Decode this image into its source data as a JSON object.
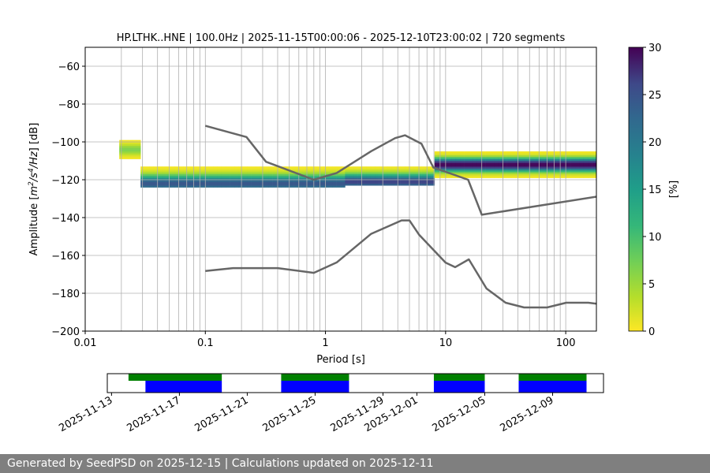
{
  "footer": {
    "text": "Generated by SeedPSD on 2025-12-15 | Calculations updated on 2025-12-11"
  },
  "chart_data": [
    {
      "type": "heatmap",
      "title": "HP.LTHK..HNE | 100.0Hz | 2025-11-15T00:00:06 - 2025-12-10T23:00:02 | 720 segments",
      "xlabel": "Period [s]",
      "ylabel_parts": [
        "Amplitude [",
        "m",
        "2",
        "/s",
        "4",
        "/Hz",
        "] [dB]"
      ],
      "x_scale": "log",
      "xlim": [
        0.01,
        180
      ],
      "ylim": [
        -200,
        -50
      ],
      "x_ticks": [
        {
          "value": 0.01,
          "label": "0.01"
        },
        {
          "value": 0.1,
          "label": "0.1"
        },
        {
          "value": 1,
          "label": "1"
        },
        {
          "value": 10,
          "label": "10"
        },
        {
          "value": 100,
          "label": "100"
        }
      ],
      "y_ticks": [
        {
          "value": -60,
          "label": "−60"
        },
        {
          "value": -80,
          "label": "−80"
        },
        {
          "value": -100,
          "label": "−100"
        },
        {
          "value": -120,
          "label": "−120"
        },
        {
          "value": -140,
          "label": "−140"
        },
        {
          "value": -160,
          "label": "−160"
        },
        {
          "value": -180,
          "label": "−180"
        },
        {
          "value": -200,
          "label": "−200"
        }
      ],
      "grid": true,
      "colormap": "viridis_r",
      "colors": {
        "curve": "#666666",
        "grid": "#b0b0b0"
      },
      "colorbar": {
        "label": "[%]",
        "range": [
          0,
          30
        ],
        "ticks": [
          {
            "value": 0,
            "label": "0"
          },
          {
            "value": 5,
            "label": "5"
          },
          {
            "value": 10,
            "label": "10"
          },
          {
            "value": 15,
            "label": "15"
          },
          {
            "value": 20,
            "label": "20"
          },
          {
            "value": 25,
            "label": "25"
          },
          {
            "value": 30,
            "label": "30"
          }
        ]
      },
      "noise_models": [
        {
          "points": [
            [
              0.1,
              -91.5
            ],
            [
              0.22,
              -97.4
            ],
            [
              0.32,
              -110.5
            ],
            [
              0.8,
              -120
            ],
            [
              1.24,
              -116.4
            ],
            [
              2.4,
              -104.9
            ],
            [
              3.8,
              -98
            ],
            [
              4.6,
              -96.5
            ],
            [
              6.3,
              -101
            ],
            [
              7.9,
              -113.5
            ],
            [
              15.4,
              -120
            ],
            [
              20,
              -138.5
            ],
            [
              354.8,
              -126
            ]
          ]
        },
        {
          "points": [
            [
              0.1,
              -168.2
            ],
            [
              0.17,
              -166.7
            ],
            [
              0.4,
              -166.7
            ],
            [
              0.8,
              -169.2
            ],
            [
              1.24,
              -163.7
            ],
            [
              2.4,
              -148.6
            ],
            [
              4.3,
              -141.5
            ],
            [
              5,
              -141.5
            ],
            [
              6,
              -149
            ],
            [
              10,
              -163.8
            ],
            [
              12,
              -166.2
            ],
            [
              15.6,
              -162.1
            ],
            [
              21.9,
              -177.5
            ],
            [
              31.6,
              -185
            ],
            [
              45,
              -187.5
            ],
            [
              70,
              -187.5
            ],
            [
              101,
              -185
            ],
            [
              154,
              -185
            ],
            [
              328,
              -187.5
            ]
          ]
        }
      ],
      "psd_bands": [
        {
          "period_min": 0.019,
          "period_max": 0.03,
          "db_top": -95,
          "db_bottom": -111,
          "peak_db": -104,
          "peak_pct": 6
        },
        {
          "period_min": 0.03,
          "period_max": 1.5,
          "db_top": -100,
          "db_bottom": -124,
          "peak_db": -122,
          "peak_pct": 22
        },
        {
          "period_min": 1.5,
          "period_max": 8,
          "db_top": -101,
          "db_bottom": -123,
          "peak_db": -121,
          "peak_pct": 24
        },
        {
          "period_min": 8,
          "period_max": 180,
          "db_top": -104,
          "db_bottom": -122,
          "peak_db": -112,
          "peak_pct": 30
        }
      ]
    },
    {
      "type": "timeline",
      "x_ticks": [
        "2025-11-13",
        "2025-11-17",
        "2025-11-21",
        "2025-11-25",
        "2025-11-29",
        "2025-12-01",
        "2025-12-05",
        "2025-12-09"
      ],
      "xlim": [
        "2025-11-12T18:00",
        "2025-12-12T00:00"
      ],
      "colors": {
        "data": "#008000",
        "psd": "#0000ff"
      },
      "data_spans": [
        [
          "2025-11-14",
          "2025-11-19T12:00"
        ],
        [
          "2025-11-23",
          "2025-11-27"
        ],
        [
          "2025-12-02",
          "2025-12-05"
        ],
        [
          "2025-12-07",
          "2025-12-11"
        ]
      ],
      "psd_spans": [
        [
          "2025-11-15",
          "2025-11-19T12:00"
        ],
        [
          "2025-11-23",
          "2025-11-27"
        ],
        [
          "2025-12-02",
          "2025-12-05"
        ],
        [
          "2025-12-07",
          "2025-12-11"
        ]
      ]
    }
  ]
}
